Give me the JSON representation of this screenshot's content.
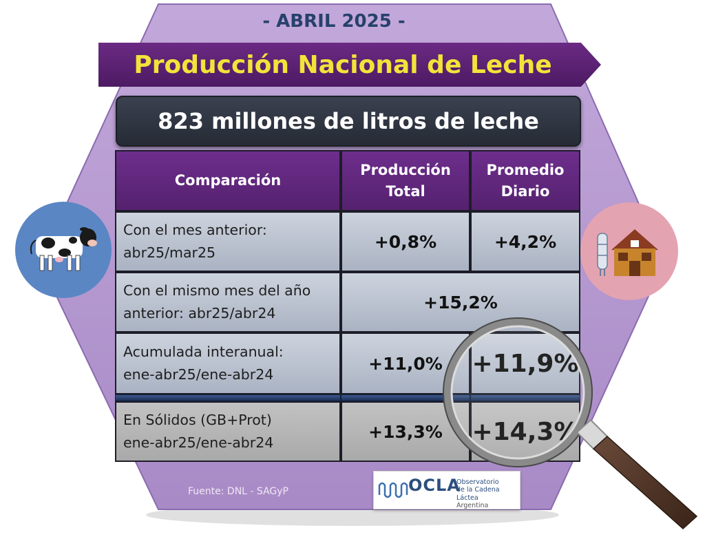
{
  "header": {
    "date": "- ABRIL 2025 -",
    "title": "Producción Nacional de Leche",
    "subtitle": "823 millones de litros de leche"
  },
  "table": {
    "headers": {
      "comparison": "Comparación",
      "total_production": "Producción Total",
      "daily_average": "Promedio Diario"
    },
    "rows": [
      {
        "label": "Con el mes anterior: abr25/mar25",
        "total": "+0,8%",
        "daily": "+4,2%"
      },
      {
        "label": "Con el mismo mes del año anterior: abr25/abr24",
        "merged": "+15,2%"
      },
      {
        "label": "Acumulada interanual: ene-abr25/ene-abr24",
        "total": "+11,0%",
        "daily": "+11,9%"
      },
      {
        "label": "En Sólidos (GB+Prot) ene-abr25/ene-abr24",
        "total": "+13,3%",
        "daily": "+14,3%"
      }
    ]
  },
  "footer": {
    "source": "Fuente: DNL - SAGyP",
    "logo": {
      "name": "OCLA",
      "line1": "Observatorio",
      "line2": "de la Cadena Láctea",
      "line3": "Argentina"
    }
  },
  "icons": {
    "left": "cow-icon",
    "right": "farm-barn-icon",
    "magnifier": "magnifying-glass-icon"
  },
  "colors": {
    "hexagon": "#b69ad0",
    "banner": "#5a2276",
    "banner_text": "#f2e33a",
    "subtitle_bar": "#2f343f",
    "header_cells": "#5f2680",
    "data_cells": "#bcc3d0",
    "solids_row": "#b5b5b5",
    "left_circle": "#5a86c4",
    "right_circle": "#e4a3b1"
  }
}
